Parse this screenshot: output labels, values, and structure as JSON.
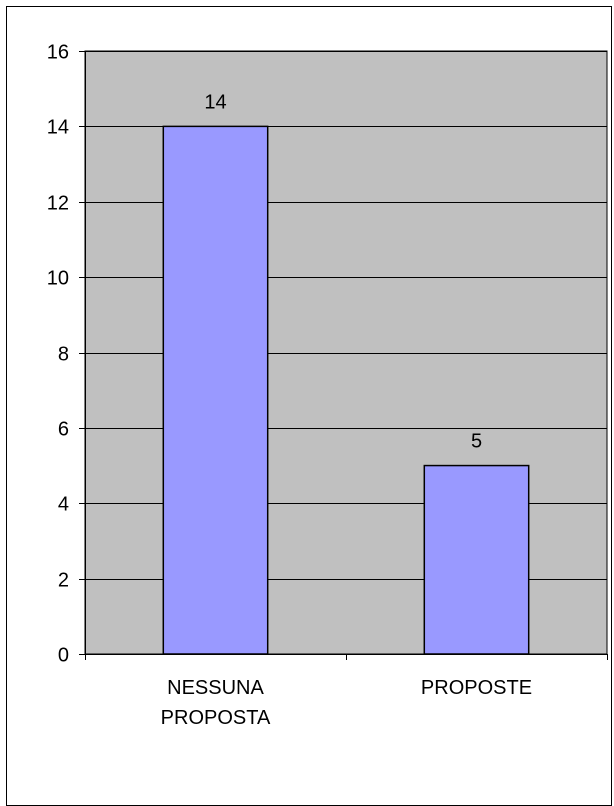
{
  "colors": {
    "plot_background": "#c0c0c0",
    "bar_fill": "#9999ff",
    "bar_stroke": "#000000",
    "gridline": "#000000",
    "frame": "#000000"
  },
  "chart_data": {
    "type": "bar",
    "title": "",
    "xlabel": "",
    "ylabel": "",
    "categories": [
      [
        "NESSUNA",
        "PROPOSTA"
      ],
      [
        "PROPOSTE"
      ]
    ],
    "values": [
      14,
      5
    ],
    "data_labels": [
      "14",
      "5"
    ],
    "ylim": [
      0,
      16
    ],
    "y_ticks": [
      0,
      2,
      4,
      6,
      8,
      10,
      12,
      14,
      16
    ],
    "grid": true,
    "legend": "none"
  }
}
